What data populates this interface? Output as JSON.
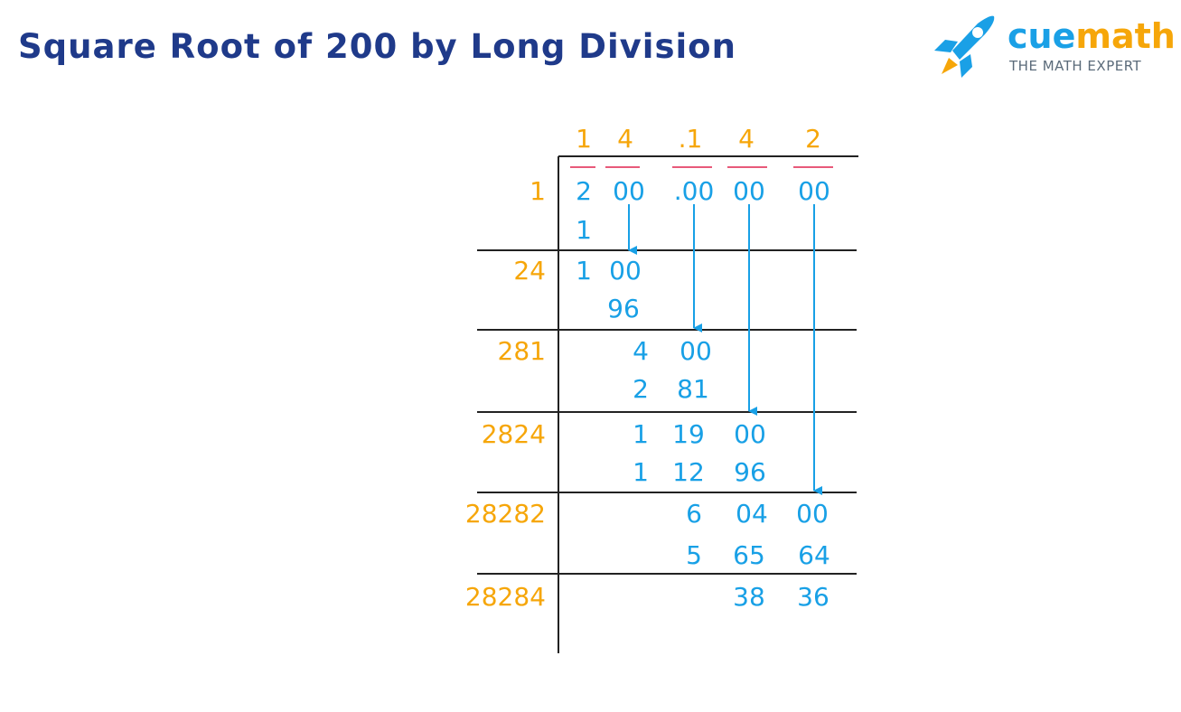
{
  "title": "Square Root of 200 by Long Division",
  "logo": {
    "prefix": "cue",
    "suffix": "math",
    "tagline": "THE MATH EXPERT"
  },
  "colors": {
    "title": "#1f3a8a",
    "orange": "#f6a609",
    "blue": "#18a0e6",
    "red": "#e85a7a",
    "line": "#222222",
    "logo_blue": "#1aa0e6",
    "logo_orange": "#f6a609",
    "tagline": "#5b6b7a"
  },
  "quotient": [
    "1",
    "4",
    ".1",
    "4",
    "2"
  ],
  "divisors": [
    "1",
    "24",
    "281",
    "2824",
    "28282",
    "28284"
  ],
  "rows": [
    {
      "name": "dividend-row",
      "cells": [
        "2",
        "00",
        ".00",
        "00",
        "00"
      ]
    },
    {
      "name": "step1-subtract",
      "cells": [
        "1"
      ]
    },
    {
      "name": "step2-remainder",
      "cells": [
        "1",
        "00"
      ]
    },
    {
      "name": "step2-subtract",
      "cells": [
        "96"
      ]
    },
    {
      "name": "step3-remainder",
      "cells": [
        "4",
        "00"
      ]
    },
    {
      "name": "step3-subtract",
      "cells": [
        "2",
        "81"
      ]
    },
    {
      "name": "step4-remainder",
      "cells": [
        "1",
        "19",
        "00"
      ]
    },
    {
      "name": "step4-subtract",
      "cells": [
        "1",
        "12",
        "96"
      ]
    },
    {
      "name": "step5-remainder",
      "cells": [
        "6",
        "04",
        "00"
      ]
    },
    {
      "name": "step5-subtract",
      "cells": [
        "5",
        "65",
        "64"
      ]
    },
    {
      "name": "final-remainder",
      "cells": [
        "38",
        "36"
      ]
    }
  ]
}
